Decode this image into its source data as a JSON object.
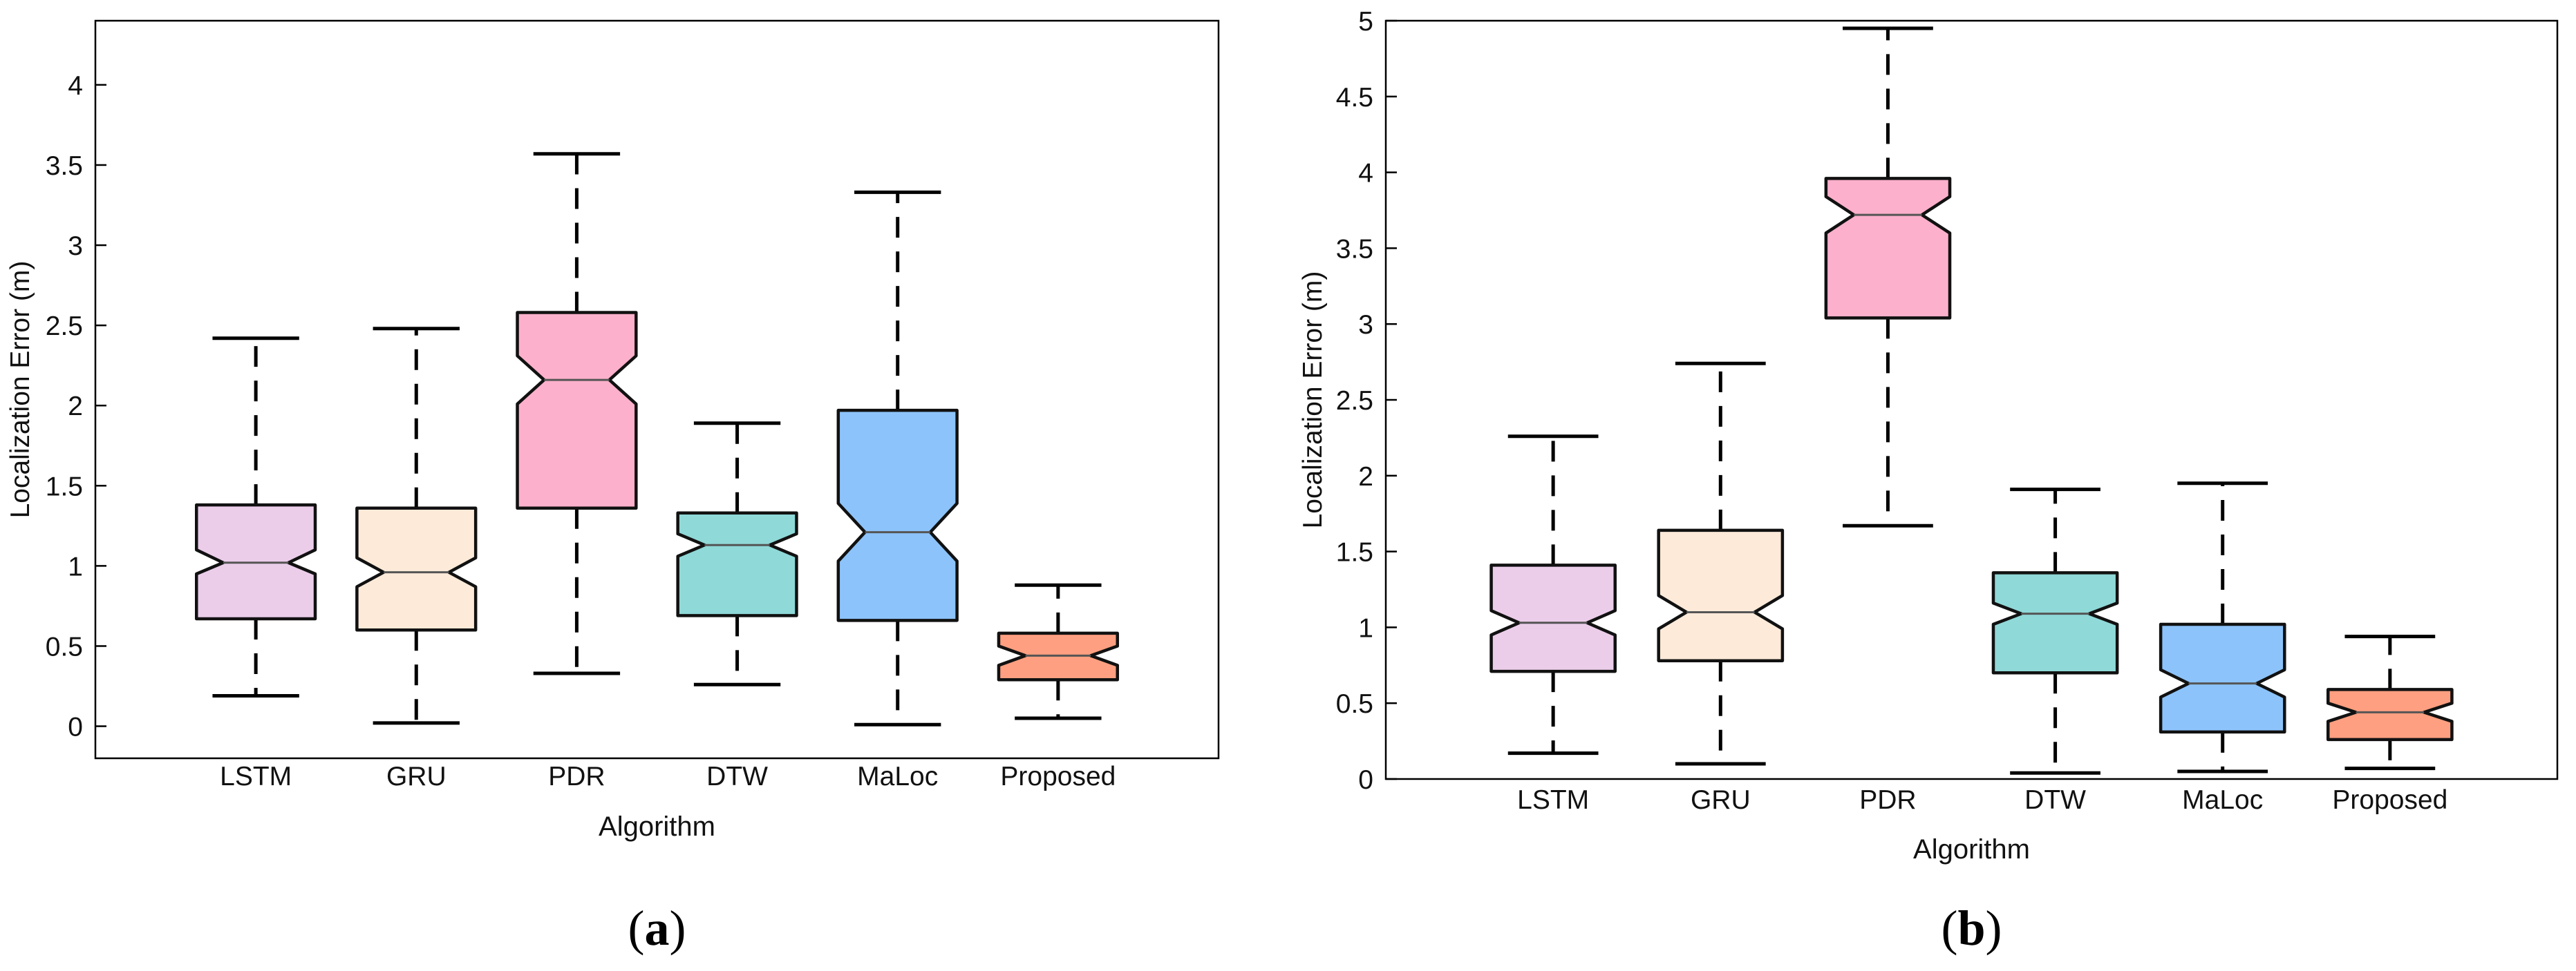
{
  "chart_data": [
    {
      "type": "box",
      "panel_label": "(a)",
      "xlabel": "Algorithm",
      "ylabel": "Localization Error (m)",
      "ylim": [
        -0.2,
        4.4
      ],
      "yticks": [
        0,
        0.5,
        1,
        1.5,
        2,
        2.5,
        3,
        3.5,
        4
      ],
      "ytick_labels": [
        "0",
        "0.5",
        "1",
        "1.5",
        "2",
        "2.5",
        "3",
        "3.5",
        "4"
      ],
      "notched": true,
      "grid": false,
      "categories": [
        "LSTM",
        "GRU",
        "PDR",
        "DTW",
        "MaLoc",
        "Proposed"
      ],
      "boxes": [
        {
          "name": "LSTM",
          "whisker_low": 0.19,
          "q1": 0.67,
          "median": 1.02,
          "q3": 1.38,
          "whisker_high": 2.42,
          "notch_low": 0.95,
          "notch_high": 1.1,
          "color": "#EBCDEA"
        },
        {
          "name": "GRU",
          "whisker_low": 0.02,
          "q1": 0.6,
          "median": 0.96,
          "q3": 1.36,
          "whisker_high": 2.48,
          "notch_low": 0.87,
          "notch_high": 1.05,
          "color": "#FDEAD9"
        },
        {
          "name": "PDR",
          "whisker_low": 0.33,
          "q1": 1.36,
          "median": 2.16,
          "q3": 2.58,
          "whisker_high": 3.57,
          "notch_low": 2.01,
          "notch_high": 2.31,
          "color": "#FDB0CB"
        },
        {
          "name": "DTW",
          "whisker_low": 0.26,
          "q1": 0.69,
          "median": 1.13,
          "q3": 1.33,
          "whisker_high": 1.89,
          "notch_low": 1.06,
          "notch_high": 1.2,
          "color": "#8FD9D8"
        },
        {
          "name": "MaLoc",
          "whisker_low": 0.01,
          "q1": 0.66,
          "median": 1.21,
          "q3": 1.97,
          "whisker_high": 3.33,
          "notch_low": 1.03,
          "notch_high": 1.39,
          "color": "#8CC3FA"
        },
        {
          "name": "Proposed",
          "whisker_low": 0.05,
          "q1": 0.29,
          "median": 0.44,
          "q3": 0.58,
          "whisker_high": 0.88,
          "notch_low": 0.38,
          "notch_high": 0.5,
          "color": "#FD9F80"
        }
      ]
    },
    {
      "type": "box",
      "panel_label": "(b)",
      "xlabel": "Algorithm",
      "ylabel": "Localization Error (m)",
      "ylim": [
        0,
        5
      ],
      "yticks": [
        0,
        0.5,
        1,
        1.5,
        2,
        2.5,
        3,
        3.5,
        4,
        4.5,
        5
      ],
      "ytick_labels": [
        "0",
        "0.5",
        "1",
        "1.5",
        "2",
        "2.5",
        "3",
        "3.5",
        "4",
        "4.5",
        "5"
      ],
      "notched": true,
      "grid": false,
      "categories": [
        "LSTM",
        "GRU",
        "PDR",
        "DTW",
        "MaLoc",
        "Proposed"
      ],
      "boxes": [
        {
          "name": "LSTM",
          "whisker_low": 0.17,
          "q1": 0.71,
          "median": 1.03,
          "q3": 1.41,
          "whisker_high": 2.26,
          "notch_low": 0.95,
          "notch_high": 1.11,
          "color": "#EBCDEA"
        },
        {
          "name": "GRU",
          "whisker_low": 0.1,
          "q1": 0.78,
          "median": 1.1,
          "q3": 1.64,
          "whisker_high": 2.74,
          "notch_low": 0.99,
          "notch_high": 1.21,
          "color": "#FDEAD9"
        },
        {
          "name": "PDR",
          "whisker_low": 1.67,
          "q1": 3.04,
          "median": 3.72,
          "q3": 3.96,
          "whisker_high": 4.95,
          "notch_low": 3.6,
          "notch_high": 3.84,
          "color": "#FDB0CB"
        },
        {
          "name": "DTW",
          "whisker_low": 0.04,
          "q1": 0.7,
          "median": 1.09,
          "q3": 1.36,
          "whisker_high": 1.91,
          "notch_low": 1.02,
          "notch_high": 1.16,
          "color": "#8FD9D8"
        },
        {
          "name": "MaLoc",
          "whisker_low": 0.05,
          "q1": 0.31,
          "median": 0.63,
          "q3": 1.02,
          "whisker_high": 1.95,
          "notch_low": 0.54,
          "notch_high": 0.72,
          "color": "#8CC3FA"
        },
        {
          "name": "Proposed",
          "whisker_low": 0.07,
          "q1": 0.26,
          "median": 0.44,
          "q3": 0.59,
          "whisker_high": 0.94,
          "notch_low": 0.38,
          "notch_high": 0.5,
          "color": "#FD9F80"
        }
      ]
    }
  ]
}
